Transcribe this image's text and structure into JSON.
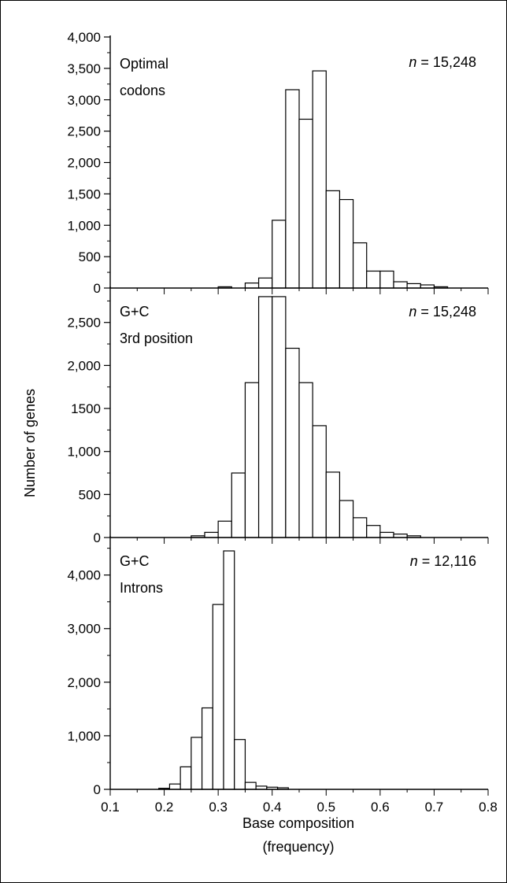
{
  "figure": {
    "ylabel": "Number of genes",
    "xlabel_line1": "Base composition",
    "xlabel_line2": "(frequency)"
  },
  "chart_data": [
    {
      "type": "bar",
      "title": "",
      "panel_label": [
        "Optimal",
        "codons"
      ],
      "annotation_prefix": "n",
      "annotation_value": "= 15,248",
      "bin_width": 0.025,
      "bin_starts": [
        0.2,
        0.225,
        0.25,
        0.275,
        0.3,
        0.325,
        0.35,
        0.375,
        0.4,
        0.425,
        0.45,
        0.475,
        0.5,
        0.525,
        0.55,
        0.575,
        0.6,
        0.625,
        0.65,
        0.675,
        0.7,
        0.725,
        0.75
      ],
      "values": [
        0,
        0,
        0,
        0,
        20,
        0,
        80,
        160,
        1080,
        3160,
        2690,
        3460,
        1550,
        1410,
        720,
        270,
        270,
        100,
        70,
        50,
        20,
        0,
        0
      ],
      "xlim": [
        0.1,
        0.8
      ],
      "ylim": [
        0,
        4000
      ],
      "yticks": [
        0,
        500,
        1000,
        1500,
        2000,
        2500,
        3000,
        3500,
        4000
      ],
      "ytick_labels": [
        "0",
        "500",
        "1,000",
        "1,500",
        "2,000",
        "2,500",
        "3,000",
        "3,500",
        "4,000"
      ]
    },
    {
      "type": "bar",
      "title": "",
      "panel_label": [
        "G+C",
        "3rd position"
      ],
      "annotation_prefix": "n",
      "annotation_value": "= 15,248",
      "bin_width": 0.025,
      "bin_starts": [
        0.2,
        0.225,
        0.25,
        0.275,
        0.3,
        0.325,
        0.35,
        0.375,
        0.4,
        0.425,
        0.45,
        0.475,
        0.5,
        0.525,
        0.55,
        0.575,
        0.6,
        0.625,
        0.65,
        0.675,
        0.7
      ],
      "values": [
        0,
        0,
        20,
        60,
        190,
        750,
        1800,
        2800,
        2800,
        2200,
        1800,
        1300,
        760,
        430,
        230,
        140,
        60,
        40,
        20,
        0,
        0
      ],
      "xlim": [
        0.1,
        0.8
      ],
      "ylim": [
        0,
        2900
      ],
      "yticks": [
        0,
        500,
        1000,
        1500,
        2000,
        2500
      ],
      "ytick_labels": [
        "0",
        "500",
        "1,000",
        "1500",
        "2,000",
        "2,500"
      ]
    },
    {
      "type": "bar",
      "title": "",
      "panel_label": [
        "G+C",
        "Introns"
      ],
      "annotation_prefix": "n",
      "annotation_value": "= 12,116",
      "bin_width": 0.02,
      "bin_starts": [
        0.17,
        0.19,
        0.21,
        0.23,
        0.25,
        0.27,
        0.29,
        0.31,
        0.33,
        0.35,
        0.37,
        0.39,
        0.41,
        0.43,
        0.45
      ],
      "values": [
        0,
        20,
        100,
        420,
        970,
        1520,
        3450,
        4450,
        930,
        130,
        60,
        40,
        30,
        0,
        0
      ],
      "xlim": [
        0.1,
        0.8
      ],
      "ylim": [
        0,
        4700
      ],
      "yticks": [
        0,
        1000,
        2000,
        3000,
        4000
      ],
      "ytick_labels": [
        "0",
        "1,000",
        "2,000",
        "3,000",
        "4,000"
      ],
      "xticks": [
        0.1,
        0.2,
        0.3,
        0.4,
        0.5,
        0.6,
        0.7,
        0.8
      ],
      "xtick_labels": [
        "0.1",
        "0.2",
        "0.3",
        "0.4",
        "0.5",
        "0.6",
        "0.7",
        "0.8"
      ]
    }
  ]
}
